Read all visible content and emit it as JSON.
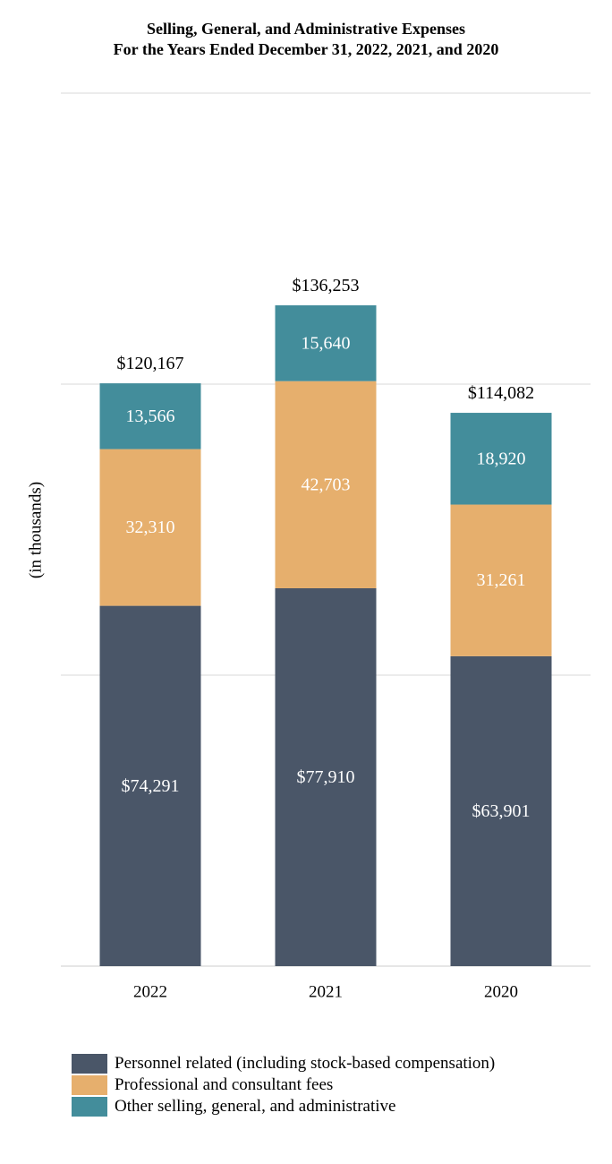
{
  "chart_data": {
    "type": "bar",
    "stacked": true,
    "title": "Selling, General, and Administrative Expenses",
    "subtitle": "For the Years Ended December 31, 2022, 2021, and 2020",
    "xlabel": "",
    "ylabel": "(in thousands)",
    "ylim": [
      0,
      180000
    ],
    "grid": true,
    "legend_position": "bottom-left",
    "categories": [
      "2022",
      "2021",
      "2020"
    ],
    "series": [
      {
        "name": "Personnel related (including stock-based compensation)",
        "color": "#4a5668",
        "values": [
          74291,
          77910,
          63901
        ],
        "labels": [
          "$74,291",
          "$77,910",
          "$63,901"
        ]
      },
      {
        "name": "Professional and consultant fees",
        "color": "#e6af6d",
        "values": [
          32310,
          42703,
          31261
        ],
        "labels": [
          "32,310",
          "42,703",
          "31,261"
        ]
      },
      {
        "name": "Other selling, general, and administrative",
        "color": "#438d9b",
        "values": [
          13566,
          15640,
          18920
        ],
        "labels": [
          "13,566",
          "15,640",
          "18,920"
        ]
      }
    ],
    "totals": [
      120167,
      136253,
      114082
    ],
    "total_labels": [
      "$120,167",
      "$136,253",
      "$114,082"
    ]
  }
}
